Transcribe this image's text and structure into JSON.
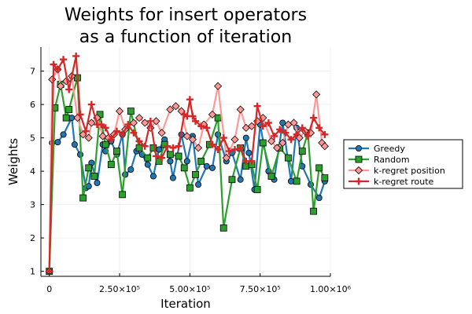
{
  "chart_data": {
    "type": "line",
    "title_lines": [
      "Weights for insert operators",
      "as a function of iteration"
    ],
    "xlabel": "Iteration",
    "ylabel": "Weights",
    "xlim": [
      -30000,
      1000000
    ],
    "ylim": [
      0.85,
      7.72
    ],
    "x_ticks": [
      {
        "value": 0,
        "label": "0"
      },
      {
        "value": 250000,
        "label": "2.50×10⁵"
      },
      {
        "value": 500000,
        "label": "5.00×10⁵"
      },
      {
        "value": 750000,
        "label": "7.50×10⁵"
      },
      {
        "value": 1000000,
        "label": "1.00×10⁶"
      }
    ],
    "y_ticks": [
      1,
      2,
      3,
      4,
      5,
      6,
      7
    ],
    "grid": true,
    "legend_position": "outer-right",
    "series": [
      {
        "name": "Greedy",
        "color": "#1f77b4",
        "marker": "circle",
        "x": [
          0,
          10000,
          30000,
          50000,
          80000,
          90000,
          110000,
          130000,
          140000,
          150000,
          170000,
          190000,
          200000,
          220000,
          240000,
          260000,
          270000,
          290000,
          310000,
          330000,
          350000,
          370000,
          390000,
          410000,
          430000,
          440000,
          470000,
          490000,
          510000,
          530000,
          560000,
          580000,
          600000,
          630000,
          650000,
          680000,
          700000,
          710000,
          730000,
          750000,
          780000,
          800000,
          830000,
          860000,
          880000,
          900000,
          930000,
          960000,
          980000
        ],
        "y": [
          1,
          4.85,
          4.87,
          5.1,
          5.6,
          4.8,
          4.5,
          3.5,
          3.55,
          4.25,
          3.65,
          4.8,
          4.6,
          4.9,
          4.5,
          5.1,
          3.9,
          4.05,
          4.6,
          4.5,
          4.2,
          3.85,
          4.65,
          4.95,
          4.3,
          3.8,
          5.1,
          4.3,
          5.05,
          3.6,
          4.15,
          4.1,
          5.1,
          4.3,
          4.55,
          3.75,
          5,
          4.55,
          3.45,
          5.4,
          4,
          3.75,
          5.45,
          3.7,
          5.3,
          4.15,
          3.6,
          3.2,
          3.7
        ]
      },
      {
        "name": "Random",
        "color": "#2ca02c",
        "marker": "square",
        "x": [
          0,
          20000,
          40000,
          60000,
          70000,
          100000,
          120000,
          140000,
          160000,
          180000,
          200000,
          220000,
          240000,
          260000,
          290000,
          320000,
          350000,
          370000,
          390000,
          410000,
          430000,
          460000,
          480000,
          500000,
          520000,
          540000,
          570000,
          600000,
          620000,
          650000,
          680000,
          700000,
          720000,
          740000,
          760000,
          790000,
          820000,
          850000,
          880000,
          900000,
          920000,
          940000,
          960000,
          980000
        ],
        "y": [
          1,
          5.9,
          6.6,
          5.6,
          5.85,
          6.8,
          3.2,
          4.1,
          3.85,
          5.7,
          4.8,
          4.2,
          4.6,
          3.3,
          5.8,
          4.7,
          4.4,
          4.7,
          4.3,
          4.8,
          4.5,
          4.45,
          4.1,
          3.5,
          3.9,
          4.3,
          4.8,
          5.6,
          2.3,
          3.75,
          4.7,
          4.15,
          4.2,
          3.45,
          4.85,
          3.85,
          4.7,
          4.4,
          3.7,
          4.6,
          5.15,
          2.8,
          4.1,
          3.8
        ]
      },
      {
        "name": "k-regret position",
        "color": "#ff9896",
        "marker": "diamond",
        "x": [
          0,
          10000,
          30000,
          40000,
          60000,
          80000,
          100000,
          120000,
          140000,
          150000,
          170000,
          190000,
          210000,
          230000,
          250000,
          270000,
          300000,
          320000,
          340000,
          360000,
          380000,
          400000,
          430000,
          450000,
          470000,
          490000,
          510000,
          530000,
          550000,
          580000,
          600000,
          630000,
          660000,
          680000,
          700000,
          720000,
          740000,
          760000,
          790000,
          810000,
          830000,
          850000,
          870000,
          890000,
          910000,
          930000,
          950000,
          970000,
          980000
        ],
        "y": [
          1,
          6.75,
          7.05,
          6.55,
          6.7,
          6.85,
          5.6,
          5.1,
          5,
          5.45,
          5.6,
          5.05,
          5,
          5.1,
          5.8,
          5.25,
          5.45,
          5.6,
          5.45,
          5.3,
          5.5,
          5.15,
          5.85,
          5.95,
          5.8,
          5.05,
          4.95,
          4.7,
          5.4,
          5.7,
          6.55,
          4.4,
          4.95,
          5.85,
          5.3,
          5.35,
          5.5,
          5.6,
          4.9,
          4.7,
          4.85,
          5.4,
          5.45,
          5,
          5.2,
          5.15,
          6.3,
          4.85,
          4.75
        ]
      },
      {
        "name": "k-regret route",
        "color": "#d62728",
        "marker": "cross",
        "x": [
          0,
          15000,
          30000,
          50000,
          70000,
          95000,
          110000,
          130000,
          150000,
          170000,
          185000,
          200000,
          220000,
          240000,
          260000,
          280000,
          300000,
          320000,
          340000,
          360000,
          380000,
          400000,
          420000,
          440000,
          460000,
          480000,
          490000,
          500000,
          510000,
          520000,
          540000,
          560000,
          580000,
          600000,
          620000,
          640000,
          660000,
          680000,
          700000,
          720000,
          740000,
          760000,
          780000,
          800000,
          820000,
          840000,
          860000,
          880000,
          900000,
          920000,
          940000,
          960000,
          980000
        ],
        "y": [
          1,
          7.2,
          7.05,
          7.35,
          6.45,
          7.45,
          5.7,
          5.2,
          6,
          5.4,
          5.4,
          5.3,
          4.95,
          5.2,
          5.1,
          5.4,
          5.15,
          4.9,
          4.75,
          5.5,
          4.45,
          4.4,
          4.75,
          4.7,
          4.75,
          5.7,
          5.65,
          6.15,
          5.65,
          5.5,
          5.35,
          5.3,
          4.8,
          4.65,
          5,
          4.6,
          4.65,
          4.7,
          4.3,
          4.3,
          5.95,
          5.35,
          5.45,
          5.05,
          5.25,
          5.15,
          4.95,
          5.1,
          5.3,
          5.05,
          5.6,
          5.3,
          5.1
        ]
      }
    ]
  }
}
